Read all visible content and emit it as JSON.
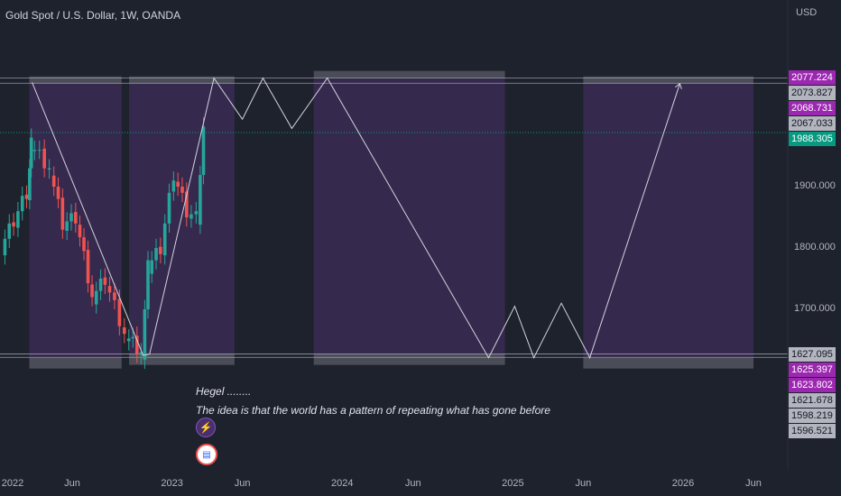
{
  "header": {
    "title": "Gold Spot / U.S. Dollar, 1W, OANDA",
    "currency": "USD"
  },
  "price_tags": [
    {
      "label": "2077.224",
      "bg": "#9c27b0",
      "fg": "#ffffff",
      "y": 2077.224
    },
    {
      "label": "2073.827",
      "bg": "#b2b5be",
      "fg": "#131722",
      "y": 2073.827
    },
    {
      "label": "2068.731",
      "bg": "#9c27b0",
      "fg": "#ffffff",
      "y": 2068.731
    },
    {
      "label": "2067.033",
      "bg": "#b2b5be",
      "fg": "#131722",
      "y": 2067.033
    },
    {
      "label": "1988.305",
      "bg": "#089981",
      "fg": "#ffffff",
      "y": 1988.305
    },
    {
      "label": "1627.095",
      "bg": "#b2b5be",
      "fg": "#131722",
      "y": 1627.095
    },
    {
      "label": "1625.397",
      "bg": "#9c27b0",
      "fg": "#ffffff",
      "y": 1625.397
    },
    {
      "label": "1623.802",
      "bg": "#9c27b0",
      "fg": "#ffffff",
      "y": 1623.802
    },
    {
      "label": "1621.678",
      "bg": "#b2b5be",
      "fg": "#131722",
      "y": 1621.678
    },
    {
      "label": "1598.219",
      "bg": "#b2b5be",
      "fg": "#131722",
      "y": 1598.219
    },
    {
      "label": "1596.521",
      "bg": "#b2b5be",
      "fg": "#131722",
      "y": 1596.521
    }
  ],
  "annotation": {
    "title": "Hegel ........",
    "text": "The idea is that the world has a pattern of repeating what has gone before",
    "icon_1": "lightning-icon",
    "icon_2": "us-flag-icon"
  },
  "colors": {
    "background": "#1e222d",
    "up": "#26a69a",
    "down": "#ef5350",
    "zone": "#4a2f6a",
    "projection": "#d1d4dc",
    "current_price": "#089981"
  },
  "chart_data": {
    "type": "line",
    "title": "Gold Spot / U.S. Dollar, 1W, OANDA",
    "xlabel": "",
    "ylabel": "",
    "yunit": "USD",
    "ylim": [
      1590,
      2085
    ],
    "xlim": [
      "2022-01-01",
      "2026-06-30"
    ],
    "x_ticks": [
      "2022",
      "Jun",
      "2023",
      "Jun",
      "2024",
      "Jun",
      "2025",
      "Jun",
      "2026",
      "Jun"
    ],
    "x_tick_dates": [
      "2022-01-01",
      "2022-06-01",
      "2023-01-01",
      "2023-06-01",
      "2024-01-01",
      "2024-06-01",
      "2025-01-01",
      "2025-06-01",
      "2026-01-01",
      "2026-06-01"
    ],
    "y_ticks": [
      1700,
      1800,
      1900
    ],
    "y_tick_labels": [
      "1700.000",
      "1800.000",
      "1900.000"
    ],
    "grid": false,
    "current_price": 1988.305,
    "horizontal_levels": [
      2077.224,
      2068.731,
      1627.095,
      1621.678
    ],
    "candles_approx": {
      "description_dates": [
        "2022-01-03",
        "2022-02-28",
        "2022-03-07",
        "2022-04-18",
        "2022-05-16",
        "2022-06-13",
        "2022-07-18",
        "2022-08-15",
        "2022-09-26",
        "2022-10-31",
        "2022-11-14",
        "2022-12-12",
        "2023-01-09",
        "2023-02-06",
        "2023-02-27",
        "2023-03-13"
      ],
      "close": [
        1800,
        1890,
        1970,
        1930,
        1840,
        1850,
        1720,
        1750,
        1660,
        1630,
        1770,
        1800,
        1920,
        1860,
        1850,
        1988
      ]
    },
    "series": [
      {
        "x": [
          "2022-03-07",
          "2022-10-31",
          "2022-11-14",
          "2023-04-01",
          "2023-06-01",
          "2023-07-15",
          "2023-09-15",
          "2023-11-30",
          "2024-11-10",
          "2025-01-05",
          "2025-02-15",
          "2025-04-15",
          "2025-06-15",
          "2025-12-25"
        ],
        "y": [
          2070,
          1625,
          1627,
          2077,
          2010,
          2077,
          1995,
          2077,
          1621,
          1705,
          1621,
          1710,
          1621,
          2068
        ]
      }
    ],
    "zones": [
      {
        "from": "2022-03-01",
        "to": "2022-09-15",
        "low": 1621,
        "high": 2068
      },
      {
        "from": "2022-10-01",
        "to": "2023-05-15",
        "low": 1627,
        "high": 2068
      },
      {
        "from": "2023-11-01",
        "to": "2024-12-15",
        "low": 1627,
        "high": 2077
      },
      {
        "from": "2025-06-01",
        "to": "2026-06-01",
        "low": 1621,
        "high": 2068
      }
    ]
  }
}
